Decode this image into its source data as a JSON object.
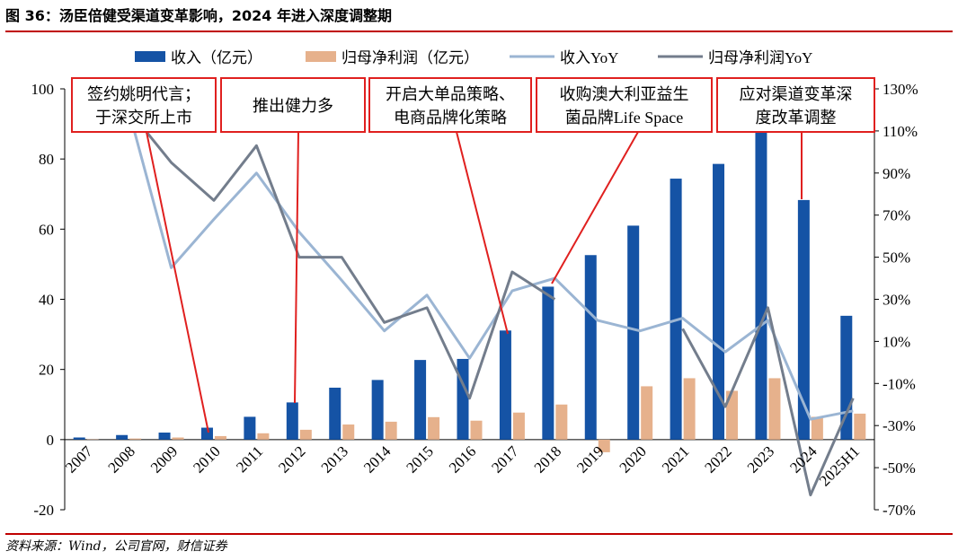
{
  "header": {
    "title": "图 36：汤臣倍健受渠道变革影响，2024 年进入深度调整期"
  },
  "footer": {
    "source": "资料来源：Wind，公司官网，财信证券"
  },
  "colors": {
    "revenue": "#1553a5",
    "net_profit": "#e6b18c",
    "revenue_yoy": "#9bb5d3",
    "profit_yoy": "#737d8c",
    "box": "#e0201f"
  },
  "chart_data": {
    "type": "bar",
    "categories": [
      "2007",
      "2008",
      "2009",
      "2010",
      "2011",
      "2012",
      "2013",
      "2014",
      "2015",
      "2016",
      "2017",
      "2018",
      "2019",
      "2020",
      "2021",
      "2022",
      "2023",
      "2024",
      "2025H1"
    ],
    "series": [
      {
        "name": "收入（亿元）",
        "type": "bar",
        "axis": "left",
        "values": [
          0.6,
          1.3,
          2.0,
          3.4,
          6.5,
          10.6,
          14.8,
          17.0,
          22.7,
          23.0,
          31.1,
          43.6,
          52.6,
          61.0,
          74.4,
          78.6,
          94.1,
          68.3,
          35.3
        ]
      },
      {
        "name": "归母净利润（亿元）",
        "type": "bar",
        "axis": "left",
        "values": [
          0.1,
          0.3,
          0.6,
          1.0,
          1.8,
          2.8,
          4.3,
          5.1,
          6.4,
          5.4,
          7.7,
          10.0,
          -3.6,
          15.2,
          17.5,
          13.9,
          17.5,
          6.5,
          7.4
        ]
      },
      {
        "name": "收入YoY",
        "type": "line",
        "axis": "right",
        "values": [
          null,
          120,
          45,
          68,
          90,
          62,
          39,
          15,
          32,
          2,
          34,
          40,
          20,
          15,
          21,
          5,
          20,
          -27,
          -23
        ]
      },
      {
        "name": "归母净利润YoY",
        "type": "line",
        "axis": "right",
        "values": [
          null,
          120,
          95,
          77,
          103,
          50,
          50,
          19,
          26,
          -17,
          43,
          30,
          null,
          null,
          16,
          -21,
          26,
          -63,
          -17
        ]
      }
    ],
    "y_left": {
      "ylim": [
        -20,
        100
      ],
      "ticks": [
        "-20",
        "0",
        "20",
        "40",
        "60",
        "80",
        "100"
      ]
    },
    "y_right": {
      "ylim": [
        -70,
        130
      ],
      "ticks": [
        "-70%",
        "-50%",
        "-30%",
        "-10%",
        "10%",
        "30%",
        "50%",
        "70%",
        "90%",
        "110%",
        "130%"
      ]
    },
    "legend": "top",
    "annotations": [
      {
        "text_lines": [
          "签约姚明代言；",
          "于深交所上市"
        ],
        "target": "2010"
      },
      {
        "text_lines": [
          "推出健力多"
        ],
        "target": "2012"
      },
      {
        "text_lines": [
          "开启大单品策略、",
          "电商品牌化策略"
        ],
        "target": "2016"
      },
      {
        "text_lines": [
          "收购澳大利亚益生",
          "菌品牌Life Space"
        ],
        "target": "2018"
      },
      {
        "text_lines": [
          "应对渠道变革深",
          "度改革调整"
        ],
        "target": "2024"
      }
    ]
  }
}
